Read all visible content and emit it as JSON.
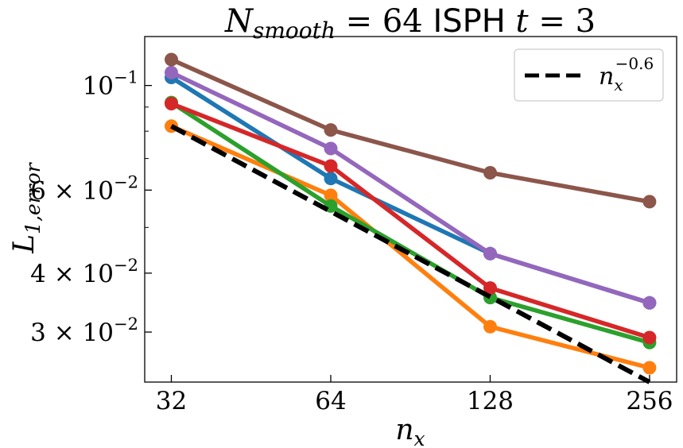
{
  "chart_data": {
    "type": "line",
    "title_parts": {
      "n_symbol": "N",
      "n_subscript": "smooth",
      "equals_value": " = 64 ",
      "method": "ISPH",
      "t_symbol": " t",
      "t_value": " = 3"
    },
    "xlabel": {
      "symbol": "n",
      "subscript": "x"
    },
    "ylabel": {
      "symbol": "L",
      "subscript": "1,error"
    },
    "xscale": "log2",
    "yscale": "log10",
    "x": [
      32,
      64,
      128,
      256
    ],
    "xtick_labels": [
      "32",
      "64",
      "128",
      "256"
    ],
    "xlim": [
      28.5,
      288
    ],
    "ylim": [
      0.0235,
      0.127
    ],
    "ytick_labels": [
      {
        "value": 0.1,
        "base": "10",
        "exp": "−1"
      },
      {
        "value": 0.06,
        "base": "6 × 10",
        "exp": "−2"
      },
      {
        "value": 0.04,
        "base": "4 × 10",
        "exp": "−2"
      },
      {
        "value": 0.03,
        "base": "3 × 10",
        "exp": "−2"
      }
    ],
    "minor_yticks": [
      0.09,
      0.08,
      0.07,
      0.05
    ],
    "series": [
      {
        "name": "blue",
        "color": "#1f77b4",
        "values": [
          0.104,
          0.0635,
          0.044,
          0.0346
        ]
      },
      {
        "name": "orange",
        "color": "#ff7f0e",
        "values": [
          0.082,
          0.0585,
          0.0308,
          0.0252
        ]
      },
      {
        "name": "green",
        "color": "#2ca02c",
        "values": [
          0.092,
          0.0555,
          0.0355,
          0.0285
        ]
      },
      {
        "name": "red",
        "color": "#d62728",
        "values": [
          0.0915,
          0.0675,
          0.0372,
          0.0292
        ]
      },
      {
        "name": "purple",
        "color": "#9467bd",
        "values": [
          0.1065,
          0.0735,
          0.044,
          0.0346
        ]
      },
      {
        "name": "brown",
        "color": "#8c564b",
        "values": [
          0.1135,
          0.0805,
          0.0653,
          0.0567
        ]
      }
    ],
    "reference_line": {
      "label_base": "n",
      "label_sub": "x",
      "label_exp": "−0.6",
      "color": "#000000",
      "style": "dashed",
      "x": [
        32,
        256
      ],
      "values": [
        0.082,
        0.0235
      ]
    },
    "legend_placement": "top-right",
    "grid": false
  }
}
